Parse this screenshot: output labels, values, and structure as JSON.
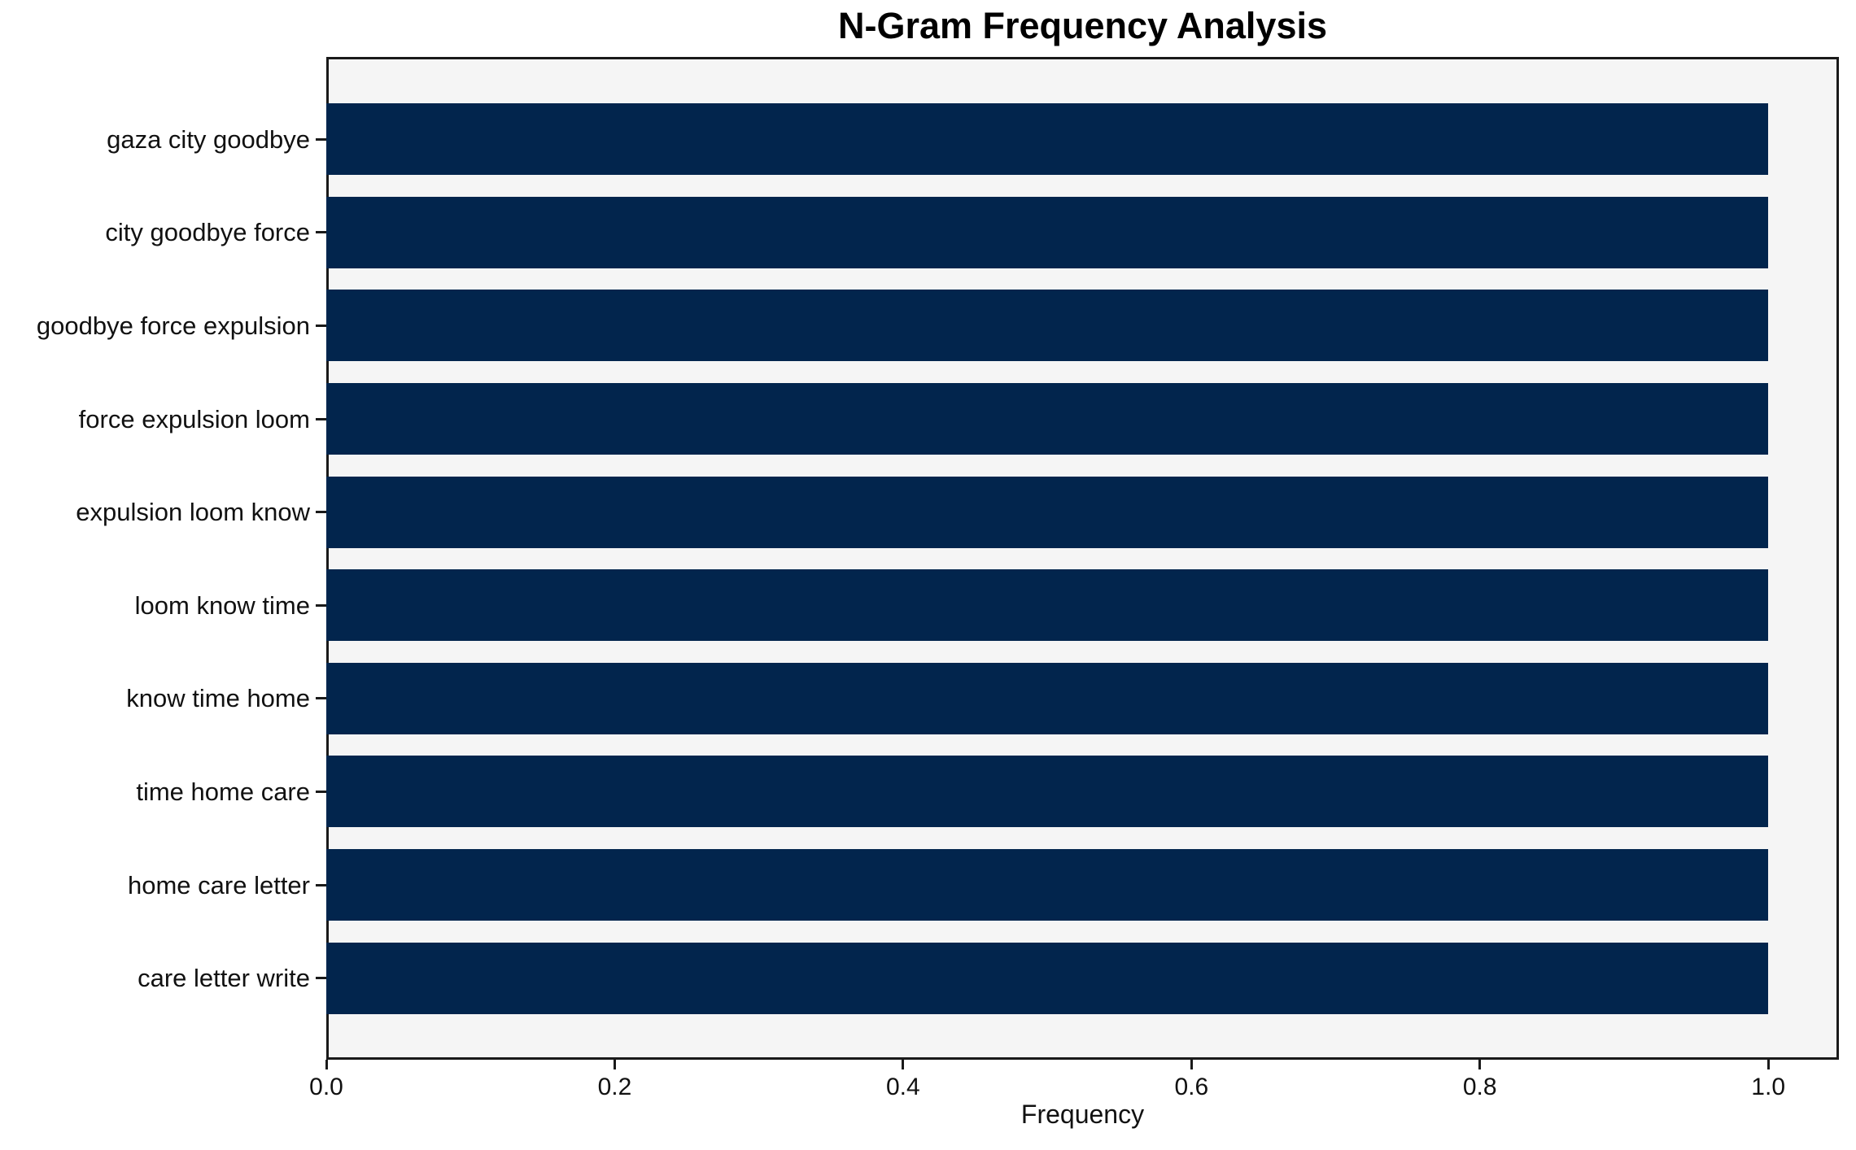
{
  "chart_data": {
    "type": "bar",
    "orientation": "horizontal",
    "title": "N-Gram Frequency Analysis",
    "xlabel": "Frequency",
    "ylabel": "",
    "categories": [
      "gaza city goodbye",
      "city goodbye force",
      "goodbye force expulsion",
      "force expulsion loom",
      "expulsion loom know",
      "loom know time",
      "know time home",
      "time home care",
      "home care letter",
      "care letter write"
    ],
    "values": [
      1.0,
      1.0,
      1.0,
      1.0,
      1.0,
      1.0,
      1.0,
      1.0,
      1.0,
      1.0
    ],
    "x_ticks": [
      "0.0",
      "0.2",
      "0.4",
      "0.6",
      "0.8",
      "1.0"
    ],
    "x_tick_values": [
      0.0,
      0.2,
      0.4,
      0.6,
      0.8,
      1.0
    ],
    "xlim": [
      0,
      1.049
    ],
    "grid": false,
    "legend": null,
    "colors": {
      "bar": "#02254d",
      "plot_background": "#f5f5f5",
      "figure_background": "#ffffff",
      "spine": "#1a1a1a",
      "text": "#111111"
    }
  }
}
